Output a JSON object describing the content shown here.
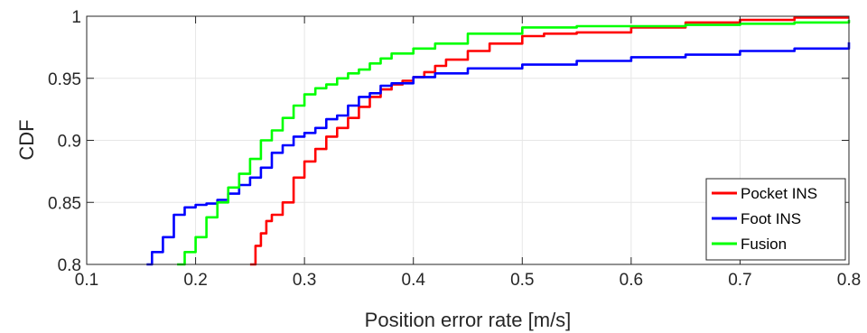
{
  "chart_data": {
    "type": "line",
    "title": "",
    "xlabel": "Position error rate [m/s]",
    "ylabel": "CDF",
    "xlim": [
      0.1,
      0.8
    ],
    "ylim": [
      0.8,
      1.0
    ],
    "x_ticks": [
      0.1,
      0.2,
      0.3,
      0.4,
      0.5,
      0.6,
      0.7,
      0.8
    ],
    "x_tick_labels": [
      "0.1",
      "0.2",
      "0.3",
      "0.4",
      "0.5",
      "0.6",
      "0.7",
      "0.8"
    ],
    "y_ticks": [
      0.8,
      0.85,
      0.9,
      0.95,
      1.0
    ],
    "y_tick_labels": [
      "0.8",
      "0.85",
      "0.9",
      "0.95",
      "1"
    ],
    "grid": true,
    "legend_position": "bottom-right",
    "series": [
      {
        "name": "Pocket INS",
        "color": "#ff0000",
        "x": [
          0.25,
          0.255,
          0.26,
          0.265,
          0.27,
          0.28,
          0.29,
          0.3,
          0.31,
          0.32,
          0.33,
          0.34,
          0.35,
          0.36,
          0.37,
          0.38,
          0.39,
          0.4,
          0.41,
          0.42,
          0.43,
          0.45,
          0.47,
          0.5,
          0.52,
          0.55,
          0.6,
          0.65,
          0.7,
          0.75,
          0.8
        ],
        "y": [
          0.8,
          0.815,
          0.825,
          0.835,
          0.84,
          0.85,
          0.87,
          0.883,
          0.893,
          0.903,
          0.91,
          0.918,
          0.927,
          0.935,
          0.941,
          0.945,
          0.948,
          0.951,
          0.955,
          0.96,
          0.965,
          0.972,
          0.978,
          0.984,
          0.986,
          0.987,
          0.991,
          0.995,
          0.997,
          0.999,
          0.999
        ]
      },
      {
        "name": "Foot INS",
        "color": "#0000ff",
        "x": [
          0.155,
          0.16,
          0.17,
          0.18,
          0.19,
          0.2,
          0.21,
          0.22,
          0.23,
          0.24,
          0.25,
          0.26,
          0.27,
          0.28,
          0.29,
          0.3,
          0.31,
          0.32,
          0.33,
          0.34,
          0.35,
          0.36,
          0.37,
          0.38,
          0.4,
          0.42,
          0.45,
          0.5,
          0.55,
          0.6,
          0.65,
          0.7,
          0.75,
          0.8
        ],
        "y": [
          0.8,
          0.81,
          0.822,
          0.84,
          0.846,
          0.848,
          0.849,
          0.852,
          0.857,
          0.864,
          0.87,
          0.878,
          0.89,
          0.896,
          0.903,
          0.906,
          0.91,
          0.917,
          0.92,
          0.928,
          0.935,
          0.938,
          0.944,
          0.946,
          0.951,
          0.954,
          0.958,
          0.961,
          0.964,
          0.967,
          0.969,
          0.972,
          0.974,
          0.979
        ]
      },
      {
        "name": "Fusion",
        "color": "#00ff00",
        "x": [
          0.183,
          0.19,
          0.2,
          0.21,
          0.22,
          0.23,
          0.24,
          0.25,
          0.26,
          0.27,
          0.28,
          0.29,
          0.3,
          0.31,
          0.32,
          0.33,
          0.34,
          0.35,
          0.36,
          0.37,
          0.38,
          0.4,
          0.42,
          0.45,
          0.5,
          0.55,
          0.6,
          0.65,
          0.7,
          0.75,
          0.8
        ],
        "y": [
          0.8,
          0.81,
          0.822,
          0.838,
          0.85,
          0.862,
          0.873,
          0.885,
          0.9,
          0.908,
          0.918,
          0.928,
          0.937,
          0.942,
          0.945,
          0.95,
          0.954,
          0.957,
          0.962,
          0.966,
          0.97,
          0.974,
          0.978,
          0.986,
          0.991,
          0.992,
          0.992,
          0.993,
          0.994,
          0.995,
          0.997
        ]
      }
    ]
  }
}
